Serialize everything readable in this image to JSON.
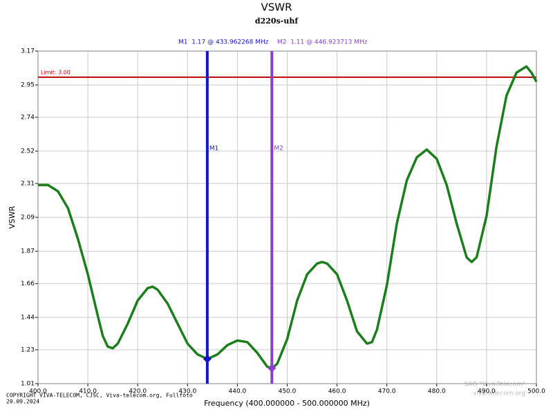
{
  "chart_data": {
    "type": "line",
    "title": "VSWR",
    "subtitle": "d220s-uhf",
    "y_label": "VSWR",
    "x_label": "Frequency (400.000000 - 500.000000 MHz)",
    "x": [
      400,
      402,
      404,
      406,
      408,
      410,
      412,
      413,
      414,
      415,
      416,
      418,
      420,
      422,
      423,
      424,
      426,
      428,
      430,
      432,
      434,
      436,
      438,
      440,
      442,
      444,
      446,
      447,
      448,
      450,
      452,
      454,
      456,
      457,
      458,
      460,
      462,
      464,
      466,
      467,
      468,
      470,
      472,
      474,
      476,
      478,
      480,
      482,
      484,
      486,
      487,
      488,
      490,
      492,
      494,
      496,
      498,
      499,
      500
    ],
    "series": [
      {
        "color": "#1b7d1b",
        "values": [
          2.3,
          2.3,
          2.26,
          2.15,
          1.95,
          1.72,
          1.45,
          1.32,
          1.25,
          1.24,
          1.27,
          1.4,
          1.55,
          1.63,
          1.64,
          1.62,
          1.53,
          1.4,
          1.27,
          1.2,
          1.17,
          1.2,
          1.26,
          1.29,
          1.28,
          1.21,
          1.12,
          1.11,
          1.14,
          1.3,
          1.55,
          1.72,
          1.79,
          1.8,
          1.79,
          1.72,
          1.55,
          1.35,
          1.27,
          1.28,
          1.36,
          1.65,
          2.05,
          2.33,
          2.48,
          2.53,
          2.47,
          2.3,
          2.05,
          1.83,
          1.8,
          1.83,
          2.1,
          2.55,
          2.88,
          3.03,
          3.07,
          3.03,
          2.97
        ]
      }
    ],
    "xlim": [
      400,
      500
    ],
    "ylim": [
      1.01,
      3.17
    ],
    "xticks": [
      {
        "value": 400,
        "label": "400.0"
      },
      {
        "value": 410,
        "label": "410.0"
      },
      {
        "value": 420,
        "label": "420.0"
      },
      {
        "value": 430,
        "label": "430.0"
      },
      {
        "value": 440,
        "label": "440.0"
      },
      {
        "value": 450,
        "label": "450.0"
      },
      {
        "value": 460,
        "label": "460.0"
      },
      {
        "value": 470,
        "label": "470.0"
      },
      {
        "value": 480,
        "label": "480.0"
      },
      {
        "value": 490,
        "label": "490.0"
      },
      {
        "value": 500,
        "label": "500.0"
      }
    ],
    "yticks": [
      1.01,
      1.23,
      1.44,
      1.66,
      1.87,
      2.09,
      2.31,
      2.52,
      2.74,
      2.95,
      3.17
    ],
    "grid": true,
    "limit": {
      "value": 3,
      "label": "Limit: 3.00",
      "color": "#c00000"
    },
    "markers": [
      {
        "label": "M1",
        "x": 433.962268,
        "value": 1.17,
        "header": "M1  1.17 @ 433.962268 MHz",
        "color": "#1414c8"
      },
      {
        "label": "M2",
        "x": 446.923713,
        "value": 1.11,
        "header": "M2  1.11 @ 446.923713 MHz",
        "color": "#8a3ecf"
      }
    ],
    "footer": [
      "COPYRIGHT VIVA-TELECOM, CJSC, Viva-telecom.org, Fullfoto",
      "20.09.2024"
    ],
    "watermark": [
      "SAO \"Viva-Telecom\"",
      "viva-telecom.org"
    ]
  }
}
